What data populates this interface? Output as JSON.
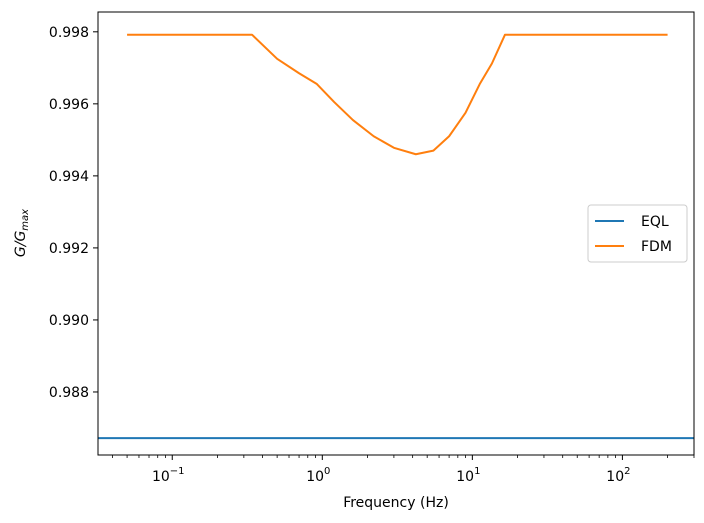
{
  "chart_data": {
    "type": "line",
    "title": "",
    "xlabel": "Frequency (Hz)",
    "ylabel_main": "G/G",
    "ylabel_sub": "max",
    "xscale": "log",
    "xlim": [
      0.032,
      300
    ],
    "ylim": [
      0.98625,
      0.99855
    ],
    "x_ticks": [
      {
        "value": 0.1,
        "base": "10",
        "exp": "−1"
      },
      {
        "value": 1,
        "base": "10",
        "exp": "0"
      },
      {
        "value": 10,
        "base": "10",
        "exp": "1"
      },
      {
        "value": 100,
        "base": "10",
        "exp": "2"
      }
    ],
    "y_ticks": [
      {
        "value": 0.988,
        "label": "0.988"
      },
      {
        "value": 0.99,
        "label": "0.990"
      },
      {
        "value": 0.992,
        "label": "0.992"
      },
      {
        "value": 0.994,
        "label": "0.994"
      },
      {
        "value": 0.996,
        "label": "0.996"
      },
      {
        "value": 0.998,
        "label": "0.998"
      }
    ],
    "grid": false,
    "legend_position": "center-right",
    "series": [
      {
        "name": "EQL",
        "color": "#1f77b4",
        "x": [
          0.032,
          300
        ],
        "y": [
          0.98672,
          0.98672
        ]
      },
      {
        "name": "FDM",
        "color": "#ff7f0e",
        "x": [
          0.05,
          0.1,
          0.2,
          0.34,
          0.5,
          0.7,
          0.92,
          1.2,
          1.6,
          2.2,
          3.0,
          4.2,
          5.5,
          7.0,
          9.0,
          11.2,
          13.5,
          16.5,
          30,
          100,
          200
        ],
        "y": [
          0.99792,
          0.99792,
          0.99792,
          0.99792,
          0.99725,
          0.99685,
          0.99655,
          0.99605,
          0.99555,
          0.9951,
          0.99478,
          0.9946,
          0.9947,
          0.9951,
          0.99575,
          0.99655,
          0.99712,
          0.99792,
          0.99792,
          0.99792,
          0.99792
        ]
      }
    ]
  }
}
